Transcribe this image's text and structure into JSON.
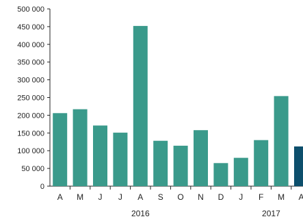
{
  "chart_data": {
    "type": "bar",
    "title": "",
    "xlabel": "",
    "ylabel": "",
    "categories": [
      "A",
      "M",
      "J",
      "J",
      "A",
      "S",
      "O",
      "N",
      "D",
      "J",
      "F",
      "M",
      "A"
    ],
    "values": [
      206000,
      217000,
      171000,
      151000,
      452000,
      128000,
      114000,
      158000,
      65000,
      80000,
      130000,
      254000,
      112000
    ],
    "highlight_index": 12,
    "ylim": [
      0,
      500000
    ],
    "yticks": [
      0,
      50000,
      100000,
      150000,
      200000,
      250000,
      300000,
      350000,
      400000,
      450000,
      500000
    ],
    "ytick_labels": [
      "0",
      "50 000",
      "100 000",
      "150 000",
      "200 000",
      "250 000",
      "300 000",
      "350 000",
      "400 000",
      "450 000",
      "500 000"
    ],
    "year_groups": [
      {
        "label": "2016",
        "start": 0,
        "end": 8
      },
      {
        "label": "2017",
        "start": 9,
        "end": 12
      }
    ],
    "grid": false,
    "colors": {
      "bar": "#3a9a8b",
      "highlight": "#0d4f6c",
      "axis": "#222222"
    }
  }
}
